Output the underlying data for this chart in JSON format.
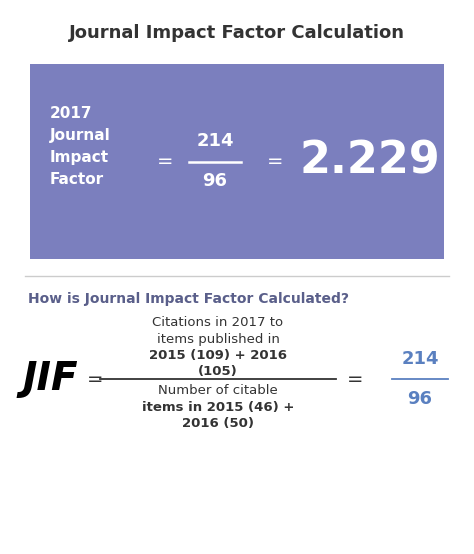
{
  "title": "Journal Impact Factor Calculation",
  "title_fontsize": 13,
  "box_color": "#7B7FBE",
  "box_label_left": "2017\nJournal\nImpact\nFactor",
  "box_numerator": "214",
  "box_denominator": "96",
  "box_result": "2.229",
  "divider_color": "#cccccc",
  "question_text": "How is Journal Impact Factor Calculated?",
  "question_color": "#5A5F8A",
  "jif_color": "#000000",
  "fraction_numerator_line1": "Citations in 2017 to",
  "fraction_numerator_line2": "items published in",
  "fraction_numerator_line3": "2015 (109) + 2016",
  "fraction_numerator_line4": "(105)",
  "fraction_denominator_line1": "Number of citable",
  "fraction_denominator_line2": "items in 2015 (46) +",
  "fraction_denominator_line3": "2016 (50)",
  "result_numerator": "214",
  "result_denominator": "96",
  "result_color": "#5A80C0",
  "bg_color": "#ffffff",
  "text_dark": "#333333"
}
